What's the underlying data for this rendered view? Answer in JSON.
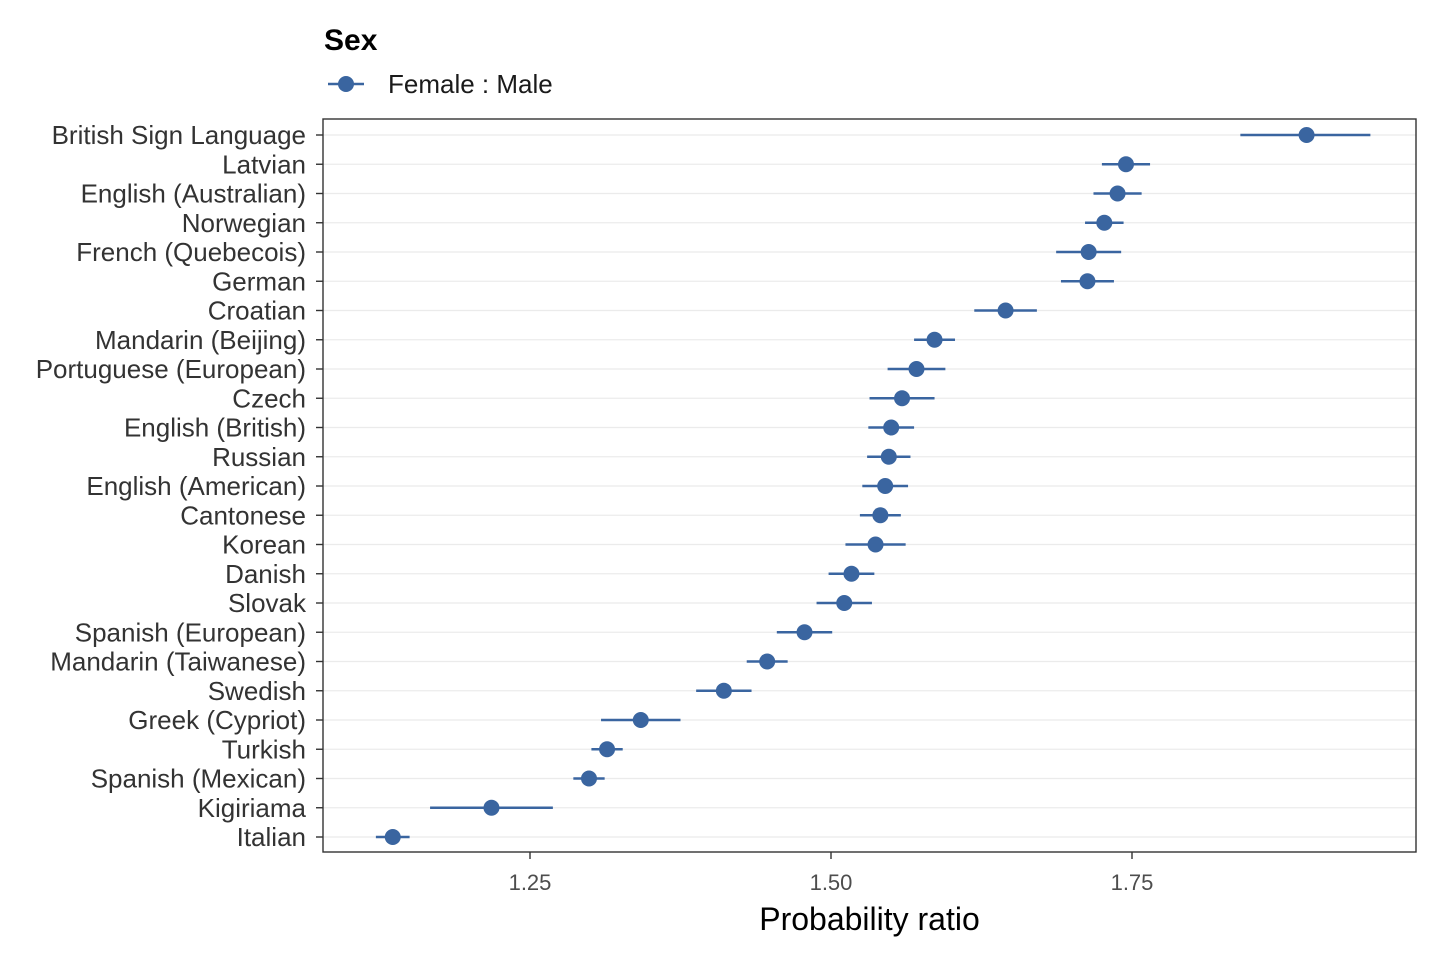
{
  "legend": {
    "title": "Sex",
    "label": "Female : Male"
  },
  "colors": {
    "series": "#3a65a0",
    "grid": "#ebebeb",
    "border": "#333333"
  },
  "chart_data": {
    "type": "scatter",
    "subtype": "point-range",
    "xlabel": "Probability ratio",
    "ylabel": "",
    "xlim": [
      1.0,
      1.95
    ],
    "x_ticks": [
      1.25,
      1.5,
      1.75
    ],
    "x_tick_labels": [
      "1.25",
      "1.50",
      "1.75"
    ],
    "grid": "horizontal",
    "legend_position": "top",
    "series": [
      {
        "name": "Female : Male",
        "points": [
          {
            "category": "British Sign Language",
            "value": 1.895,
            "low": 1.84,
            "high": 1.948
          },
          {
            "category": "Latvian",
            "value": 1.745,
            "low": 1.725,
            "high": 1.765
          },
          {
            "category": "English (Australian)",
            "value": 1.738,
            "low": 1.718,
            "high": 1.758
          },
          {
            "category": "Norwegian",
            "value": 1.727,
            "low": 1.711,
            "high": 1.743
          },
          {
            "category": "French (Quebecois)",
            "value": 1.714,
            "low": 1.687,
            "high": 1.741
          },
          {
            "category": "German",
            "value": 1.713,
            "low": 1.691,
            "high": 1.735
          },
          {
            "category": "Croatian",
            "value": 1.645,
            "low": 1.619,
            "high": 1.671
          },
          {
            "category": "Mandarin (Beijing)",
            "value": 1.586,
            "low": 1.569,
            "high": 1.603
          },
          {
            "category": "Portuguese (European)",
            "value": 1.571,
            "low": 1.547,
            "high": 1.595
          },
          {
            "category": "Czech",
            "value": 1.559,
            "low": 1.532,
            "high": 1.586
          },
          {
            "category": "English (British)",
            "value": 1.55,
            "low": 1.531,
            "high": 1.569
          },
          {
            "category": "Russian",
            "value": 1.548,
            "low": 1.53,
            "high": 1.566
          },
          {
            "category": "English (American)",
            "value": 1.545,
            "low": 1.526,
            "high": 1.564
          },
          {
            "category": "Cantonese",
            "value": 1.541,
            "low": 1.524,
            "high": 1.558
          },
          {
            "category": "Korean",
            "value": 1.537,
            "low": 1.512,
            "high": 1.562
          },
          {
            "category": "Danish",
            "value": 1.517,
            "low": 1.498,
            "high": 1.536
          },
          {
            "category": "Slovak",
            "value": 1.511,
            "low": 1.488,
            "high": 1.534
          },
          {
            "category": "Spanish (European)",
            "value": 1.478,
            "low": 1.455,
            "high": 1.501
          },
          {
            "category": "Mandarin (Taiwanese)",
            "value": 1.447,
            "low": 1.43,
            "high": 1.464
          },
          {
            "category": "Swedish",
            "value": 1.411,
            "low": 1.388,
            "high": 1.434
          },
          {
            "category": "Greek (Cypriot)",
            "value": 1.342,
            "low": 1.309,
            "high": 1.375
          },
          {
            "category": "Turkish",
            "value": 1.314,
            "low": 1.301,
            "high": 1.327
          },
          {
            "category": "Spanish (Mexican)",
            "value": 1.299,
            "low": 1.286,
            "high": 1.312
          },
          {
            "category": "Kigiriama",
            "value": 1.218,
            "low": 1.167,
            "high": 1.269
          },
          {
            "category": "Italian",
            "value": 1.136,
            "low": 1.122,
            "high": 1.15
          }
        ]
      }
    ]
  }
}
